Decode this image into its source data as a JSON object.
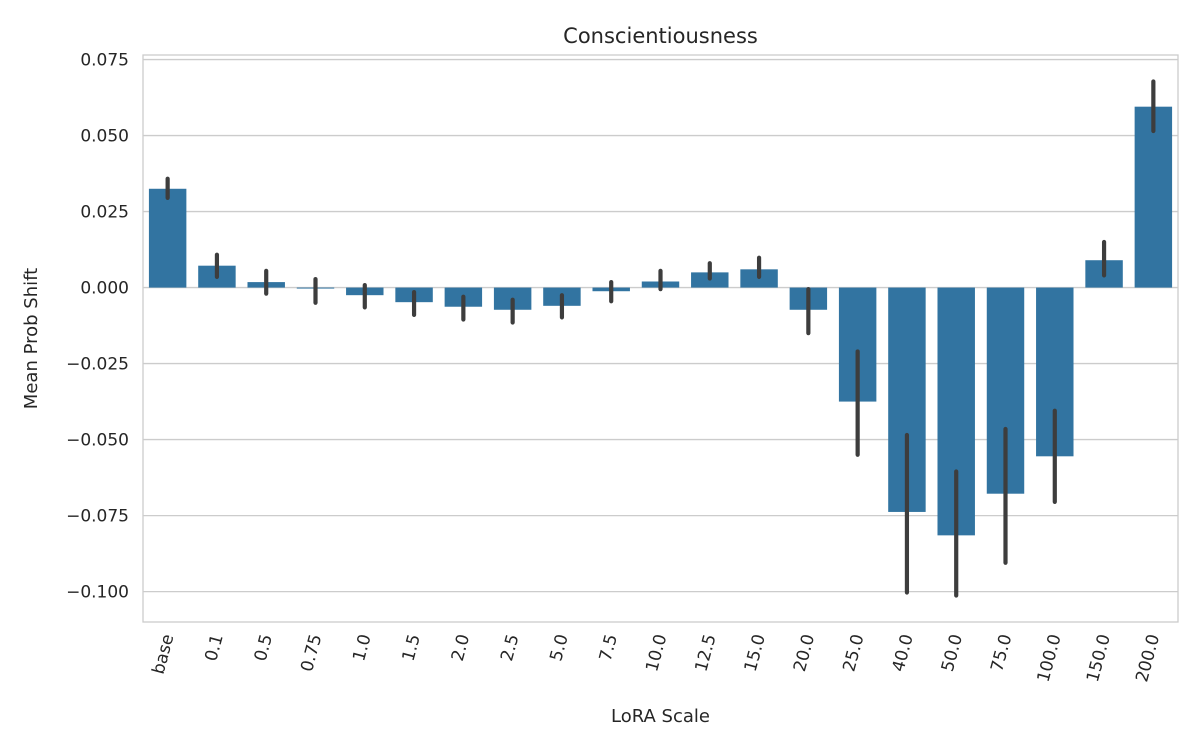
{
  "chart_data": {
    "type": "bar",
    "title": "Conscientiousness",
    "xlabel": "LoRA Scale",
    "ylabel": "Mean Prob Shift",
    "categories": [
      "base",
      "0.1",
      "0.5",
      "0.75",
      "1.0",
      "1.5",
      "2.0",
      "2.5",
      "5.0",
      "7.5",
      "10.0",
      "12.5",
      "15.0",
      "20.0",
      "25.0",
      "40.0",
      "50.0",
      "75.0",
      "100.0",
      "150.0",
      "200.0"
    ],
    "values": [
      0.0325,
      0.0072,
      0.0018,
      0.0,
      -0.0025,
      -0.0048,
      -0.0063,
      -0.0073,
      -0.006,
      -0.0012,
      0.002,
      0.005,
      0.006,
      -0.0073,
      -0.0375,
      -0.0738,
      -0.0815,
      -0.0678,
      -0.0555,
      0.009,
      0.0595
    ],
    "error_low": [
      0.0295,
      0.0035,
      -0.002,
      -0.005,
      -0.0065,
      -0.009,
      -0.0105,
      -0.0115,
      -0.0098,
      -0.0045,
      -0.0005,
      0.003,
      0.0035,
      -0.015,
      -0.055,
      -0.1003,
      -0.1013,
      -0.0905,
      -0.0705,
      0.004,
      0.0515
    ],
    "error_high": [
      0.0358,
      0.0108,
      0.0055,
      0.0028,
      0.0008,
      -0.0015,
      -0.003,
      -0.004,
      -0.0025,
      0.0018,
      0.0055,
      0.008,
      0.0098,
      -0.0005,
      -0.021,
      -0.0485,
      -0.0605,
      -0.0465,
      -0.0405,
      0.015,
      0.0678
    ],
    "yticks": [
      0.075,
      0.05,
      0.025,
      0.0,
      -0.025,
      -0.05,
      -0.075,
      -0.1
    ],
    "ytick_labels": [
      "0.075",
      "0.050",
      "0.025",
      "0.000",
      "−0.025",
      "−0.050",
      "−0.075",
      "−0.100"
    ],
    "ylim": [
      -0.11,
      0.0765
    ],
    "grid": "horizontal",
    "bar_color": "#3274a1",
    "errorbar_color": "#3d3d3d",
    "grid_color": "#cccccc",
    "spine_color": "#cccccc"
  }
}
